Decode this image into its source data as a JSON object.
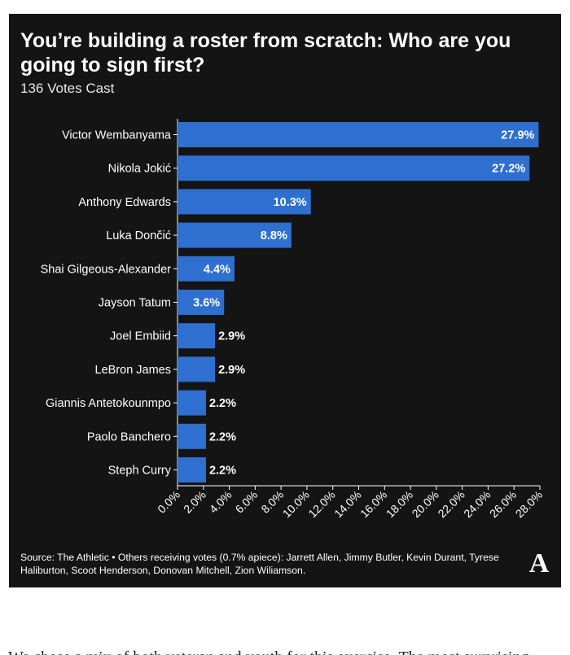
{
  "header": {
    "title": "You’re building a roster from scratch: Who are you going to sign first?",
    "subtitle": "136 Votes Cast"
  },
  "chart_data": {
    "type": "bar",
    "orientation": "horizontal",
    "categories": [
      "Victor Wembanyama",
      "Nikola Jokić",
      "Anthony Edwards",
      "Luka Dončić",
      "Shai Gilgeous-Alexander",
      "Jayson Tatum",
      "Joel Embiid",
      "LeBron James",
      "Giannis Antetokounmpo",
      "Paolo Banchero",
      "Steph Curry"
    ],
    "values": [
      27.9,
      27.2,
      10.3,
      8.8,
      4.4,
      3.6,
      2.9,
      2.9,
      2.2,
      2.2,
      2.2
    ],
    "value_labels": [
      "27.9%",
      "27.2%",
      "10.3%",
      "8.8%",
      "4.4%",
      "3.6%",
      "2.9%",
      "2.9%",
      "2.2%",
      "2.2%",
      "2.2%"
    ],
    "xlim": [
      0,
      28
    ],
    "x_ticks": [
      "0.0%",
      "2.0%",
      "4.0%",
      "6.0%",
      "8.0%",
      "10.0%",
      "12.0%",
      "14.0%",
      "16.0%",
      "18.0%",
      "20.0%",
      "22.0%",
      "24.0%",
      "26.0%",
      "28.0%"
    ],
    "grid": false,
    "colors": {
      "bar": "#2f6fd0",
      "background": "#141414",
      "text": "#ffffff"
    }
  },
  "footer": {
    "source": "Source: The Athletic • Others receiving votes (0.7% apiece): Jarrett Allen, Jimmy Butler, Kevin Durant, Tyrese Haliburton, Scoot Henderson, Donovan Mitchell, Zion Wiliamson.",
    "logo_text": "A"
  },
  "article": {
    "partial_line": "We chose a mix of both veteran and youth for this exercise. The most surprising"
  }
}
